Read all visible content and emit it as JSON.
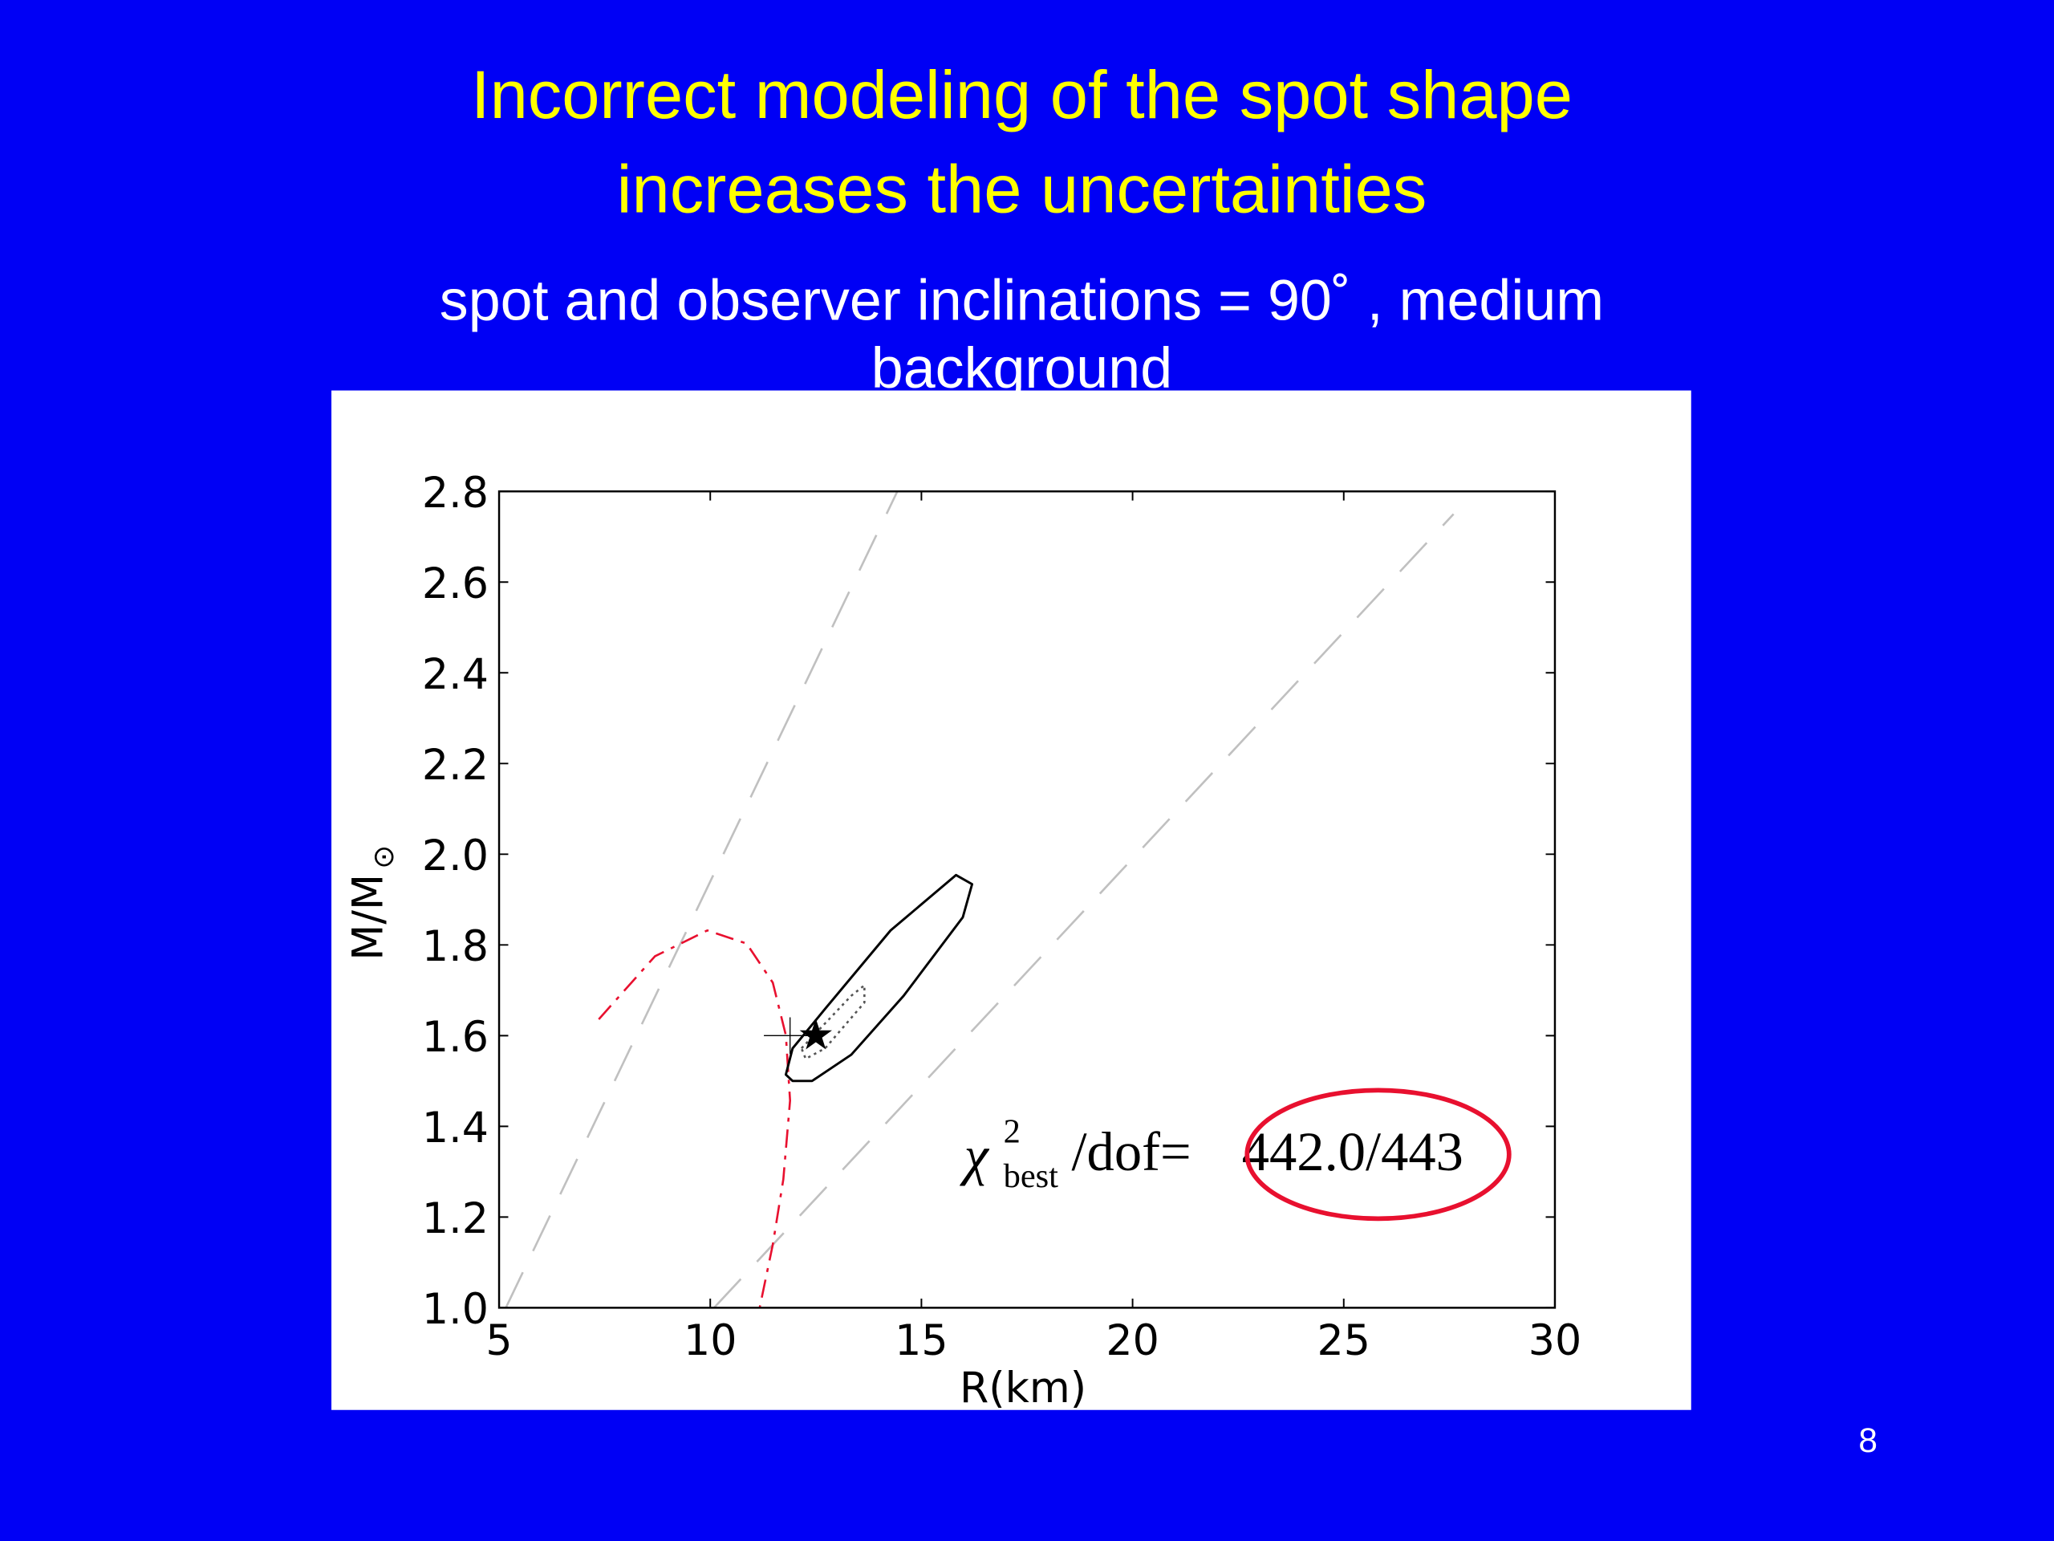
{
  "slide": {
    "title": [
      "Incorrect modeling of the spot shape",
      "increases the uncertainties"
    ],
    "subtitle": [
      "spot and observer inclinations = 90˚ , medium",
      "background"
    ],
    "page_number": "8"
  },
  "chart_data": {
    "type": "line",
    "xlabel": "R(km)",
    "ylabel": "M/M",
    "ylabel_subscript": "⊙",
    "xlim": [
      5,
      30
    ],
    "ylim": [
      1.0,
      2.8
    ],
    "xticks": [
      5,
      10,
      15,
      20,
      25,
      30
    ],
    "yticks": [
      {
        "value": 1.0,
        "label": "1.0"
      },
      1.2,
      1.4,
      1.6,
      1.8,
      {
        "value": 2.0,
        "label": "2.0"
      },
      2.2,
      2.4,
      2.6,
      2.8
    ],
    "series": [
      {
        "color": "#c0c0c0",
        "style": "dashed",
        "x": [
          5.16,
          14.43
        ],
        "values": [
          1.0,
          2.8
        ]
      },
      {
        "color": "#c0c0c0",
        "style": "dashed",
        "x": [
          10.09,
          27.6
        ],
        "values": [
          1.0,
          2.75
        ]
      },
      {
        "color": "#e8102f",
        "style": "dashdot",
        "x": [
          7.36,
          8.69,
          9.93,
          10.86,
          11.48,
          11.79,
          11.89,
          11.73,
          11.48,
          11.17
        ],
        "values": [
          1.636,
          1.775,
          1.832,
          1.803,
          1.717,
          1.601,
          1.457,
          1.283,
          1.139,
          1.0
        ]
      },
      {
        "color": "#000000",
        "style": "solid",
        "closed": true,
        "x": [
          11.79,
          11.95,
          12.72,
          14.27,
          15.82,
          16.2,
          15.98,
          14.58,
          13.34,
          12.41,
          11.95
        ],
        "values": [
          1.514,
          1.572,
          1.659,
          1.832,
          1.954,
          1.934,
          1.861,
          1.688,
          1.558,
          1.5,
          1.5
        ]
      },
      {
        "color": "#555555",
        "style": "dotted",
        "closed": true,
        "x": [
          12.16,
          13.34,
          13.65,
          13.65,
          12.72,
          12.26
        ],
        "values": [
          1.572,
          1.688,
          1.711,
          1.673,
          1.572,
          1.549
        ]
      },
      {
        "color": "#000000",
        "marker": "plus",
        "x": [
          11.89
        ],
        "values": [
          1.6
        ]
      },
      {
        "color": "#000000",
        "marker": "star",
        "x": [
          12.5
        ],
        "values": [
          1.6
        ]
      }
    ],
    "annotation": {
      "symbol": "χ",
      "superscript": "2",
      "subscript": "best",
      "text": "/dof=",
      "highlight": "442.0/443",
      "highlight_color": "#e8102f"
    }
  }
}
